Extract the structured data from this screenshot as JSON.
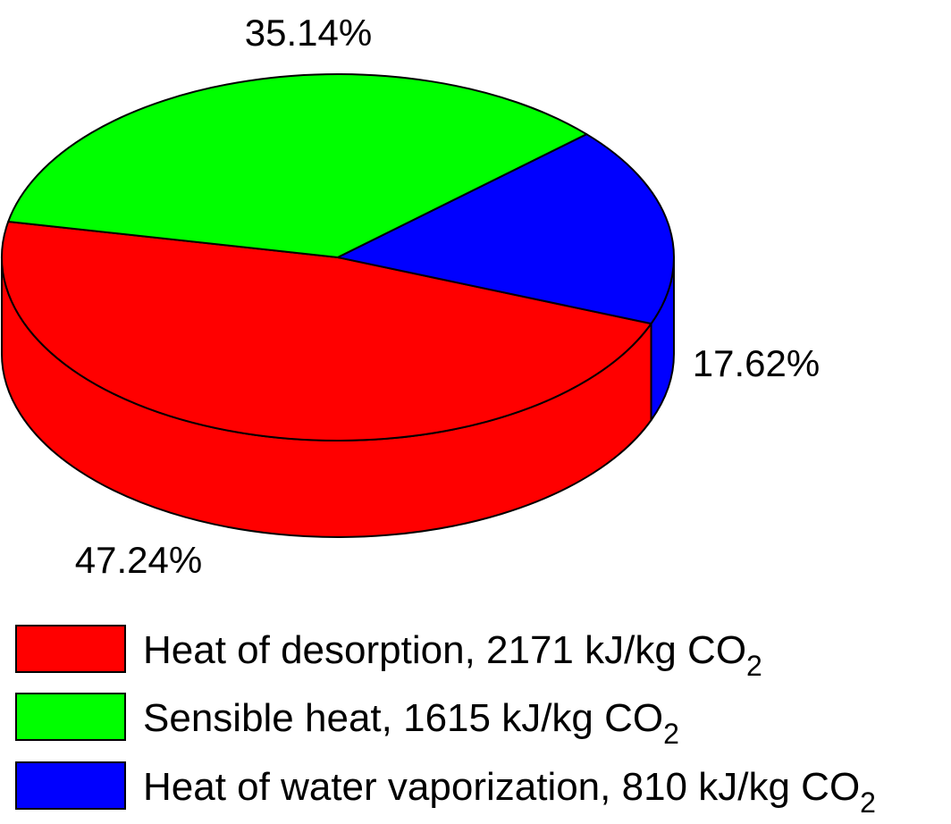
{
  "chart_data": {
    "type": "pie",
    "style": "3d",
    "slices": [
      {
        "name": "Heat of desorption",
        "value": 2171,
        "percent_label": "47.24%",
        "color": "#ff0000",
        "legend_text": "Heat of desorption, 2171 kJ/kg CO",
        "legend_sub": "2"
      },
      {
        "name": "Sensible heat",
        "value": 1615,
        "percent_label": "35.14%",
        "color": "#00ff00",
        "legend_text": "Sensible heat, 1615 kJ/kg CO",
        "legend_sub": "2"
      },
      {
        "name": "Heat of water vaporization",
        "value": 810,
        "percent_label": "17.62%",
        "color": "#0000ff",
        "legend_text": "Heat of water vaporization, 810 kJ/kg CO",
        "legend_sub": "2"
      }
    ],
    "percentages": [
      47.24,
      35.14,
      17.62
    ],
    "unit": "kJ/kg CO2",
    "legend_position": "bottom"
  },
  "colors": {
    "desorption": "#ff0000",
    "sensible": "#00ff00",
    "vaporization": "#0000ff",
    "outline": "#000000"
  }
}
